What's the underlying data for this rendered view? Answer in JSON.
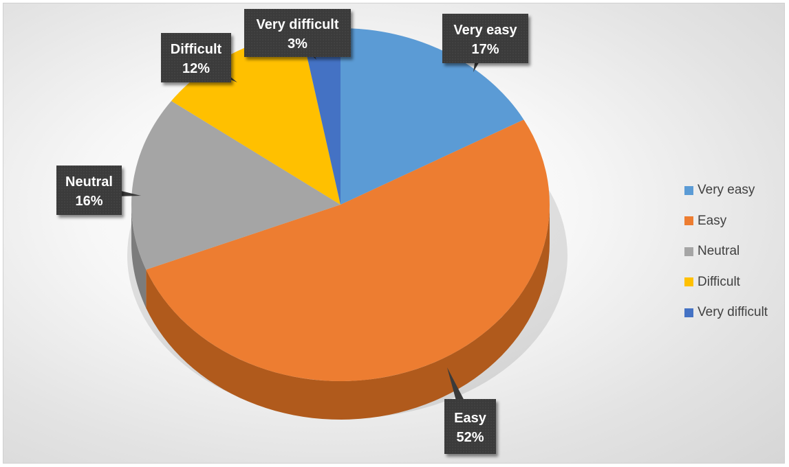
{
  "chart_data": {
    "type": "pie",
    "style": "3d",
    "categories": [
      "Very easy",
      "Easy",
      "Neutral",
      "Difficult",
      "Very difficult"
    ],
    "values": [
      17,
      52,
      16,
      12,
      3
    ],
    "value_labels": [
      "17%",
      "52%",
      "16%",
      "12%",
      "3%"
    ],
    "unit": "%",
    "colors": [
      "#5b9bd5",
      "#ed7d31",
      "#a5a5a5",
      "#ffc000",
      "#4472c4"
    ],
    "side_colors": [
      "#3f75a8",
      "#b05a1c",
      "#7c7c7c",
      "#c99600",
      "#2f5597"
    ],
    "legend_position": "right",
    "data_label_style": "dark callouts"
  }
}
